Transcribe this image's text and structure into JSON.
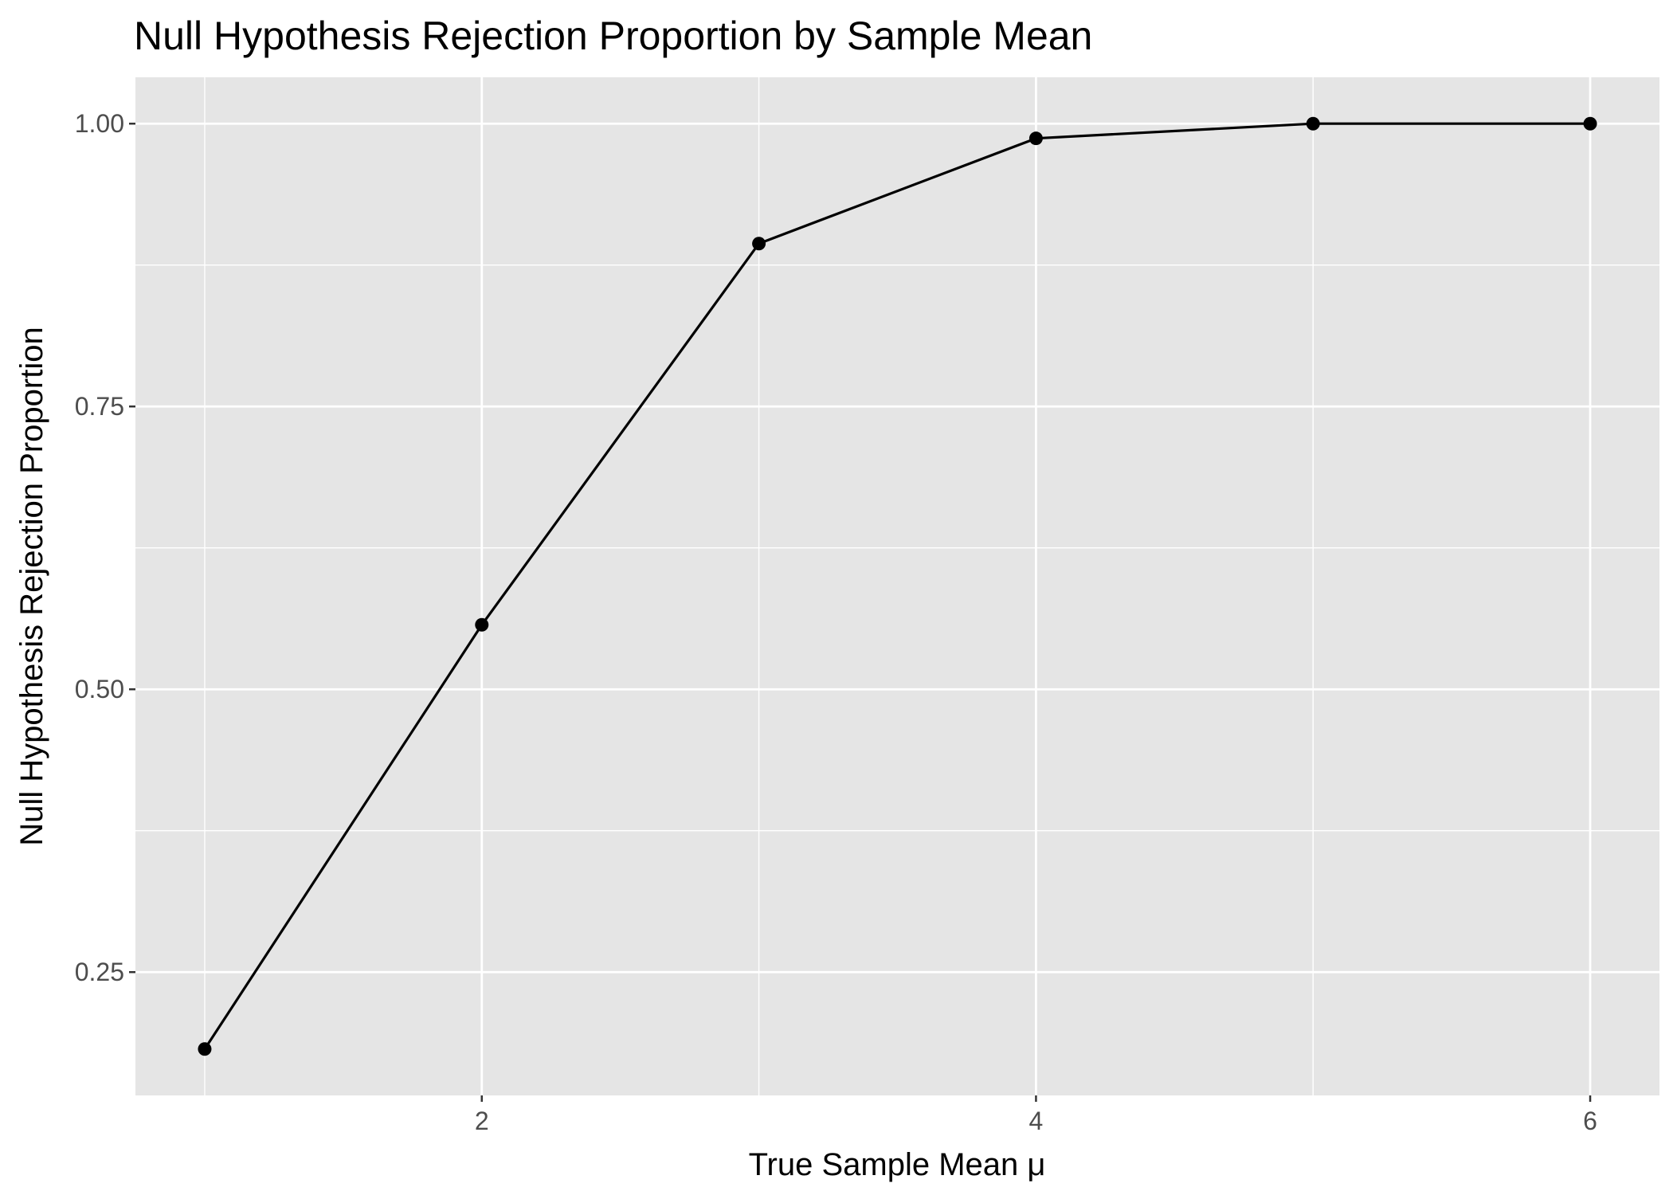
{
  "chart_data": {
    "type": "line",
    "title": "Null Hypothesis Rejection Proportion by Sample Mean",
    "xlabel": "True Sample Mean μ",
    "ylabel": "Null Hypothesis Rejection Proportion",
    "x": [
      1,
      2,
      3,
      4,
      5,
      6
    ],
    "series": [
      {
        "values": [
          0.182,
          0.557,
          0.894,
          0.987,
          1.0,
          1.0
        ]
      }
    ],
    "xlim": [
      0.75,
      6.25
    ],
    "ylim": [
      0.141,
      1.041
    ],
    "xticks": [
      2,
      4,
      6
    ],
    "xtick_labels": [
      "2",
      "4",
      "6"
    ],
    "yticks": [
      0.25,
      0.5,
      0.75,
      1.0
    ],
    "ytick_labels": [
      "0.25",
      "0.50",
      "0.75",
      "1.00"
    ],
    "grid": true,
    "legend": "none",
    "colors": {
      "panel_background": "#e5e5e5",
      "grid": "#ffffff",
      "line": "#000000",
      "point": "#000000",
      "tick_label": "#4d4d4d",
      "tick_mark": "#333333"
    }
  }
}
